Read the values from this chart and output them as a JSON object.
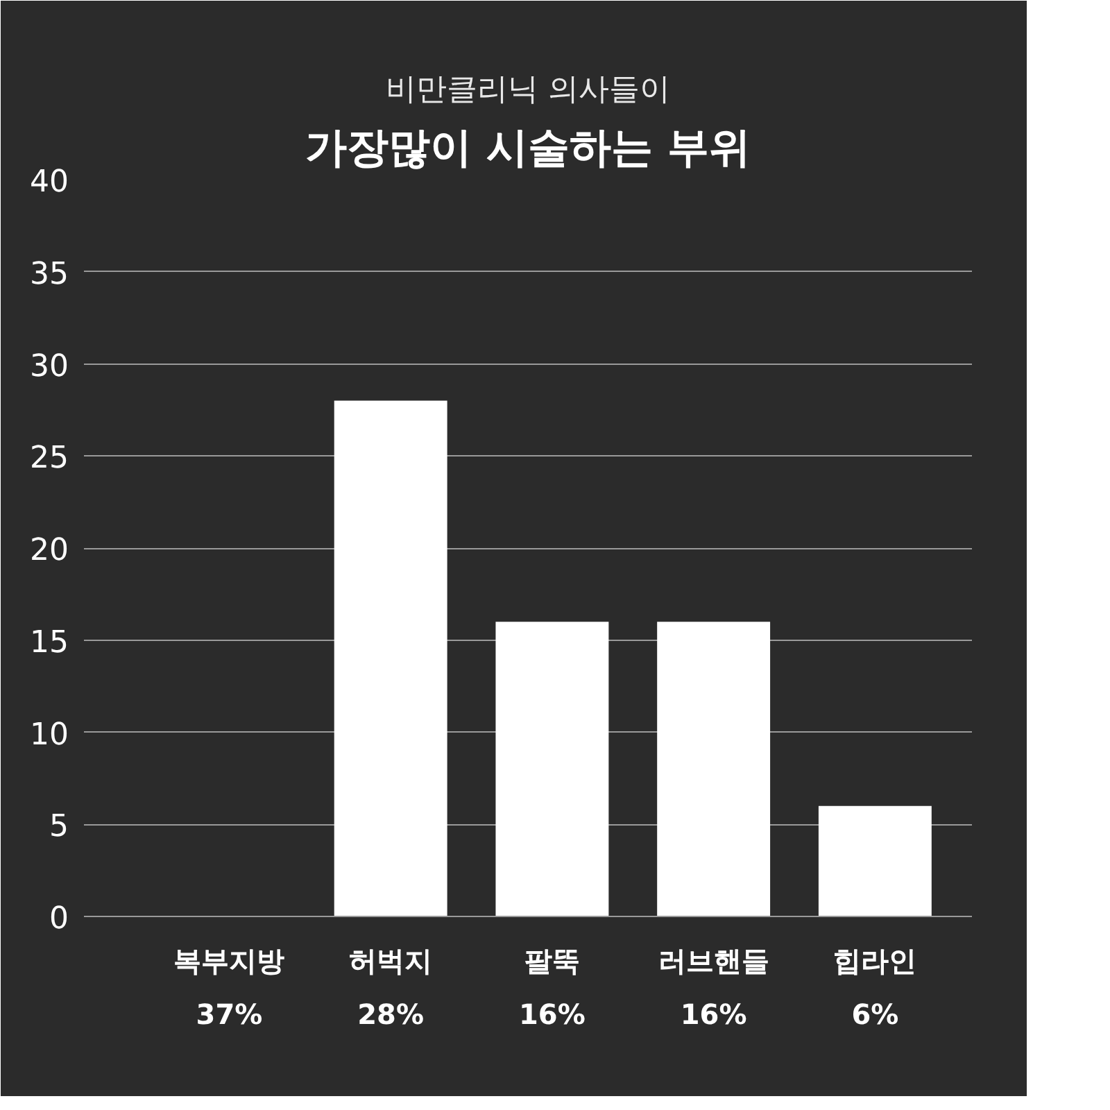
{
  "chart_data": {
    "type": "bar",
    "subtitle": "비만클리닉 의사들이",
    "title": "가장많이 시술하는 부위",
    "categories": [
      "복부지방",
      "허벅지",
      "팔뚝",
      "러브핸들",
      "힙라인"
    ],
    "values": [
      null,
      28,
      16,
      16,
      6
    ],
    "value_labels": [
      "37%",
      "28%",
      "16%",
      "16%",
      "6%"
    ],
    "color": "#ffffff",
    "ylim": [
      0,
      40
    ],
    "yticks": [
      0,
      5,
      10,
      15,
      20,
      25,
      30,
      35,
      40
    ],
    "grid": "y"
  }
}
